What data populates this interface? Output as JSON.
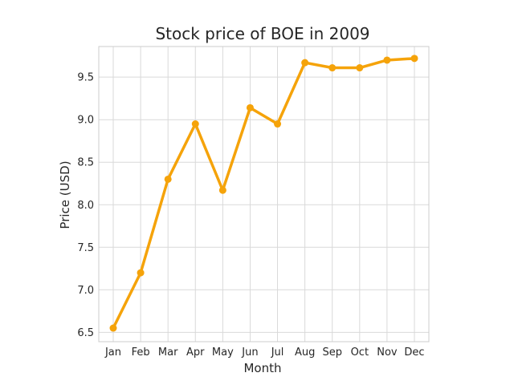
{
  "chart_data": {
    "type": "line",
    "title": "Stock price of BOE in 2009",
    "xlabel": "Month",
    "ylabel": "Price (USD)",
    "categories": [
      "Jan",
      "Feb",
      "Mar",
      "Apr",
      "May",
      "Jun",
      "Jul",
      "Aug",
      "Sep",
      "Oct",
      "Nov",
      "Dec"
    ],
    "series": [
      {
        "values": [
          6.55,
          7.2,
          8.3,
          8.95,
          8.17,
          9.14,
          8.95,
          9.67,
          9.61,
          9.61,
          9.7,
          9.72
        ]
      }
    ],
    "ylim": [
      6.39,
      9.86
    ],
    "yticks": [
      "6.5",
      "7.0",
      "7.5",
      "8.0",
      "8.5",
      "9.0",
      "9.5"
    ],
    "grid": true,
    "legend": "none",
    "line_color": "#f5a30a",
    "grid_color": "#d9d9d9",
    "spine_color": "#cccccc"
  }
}
